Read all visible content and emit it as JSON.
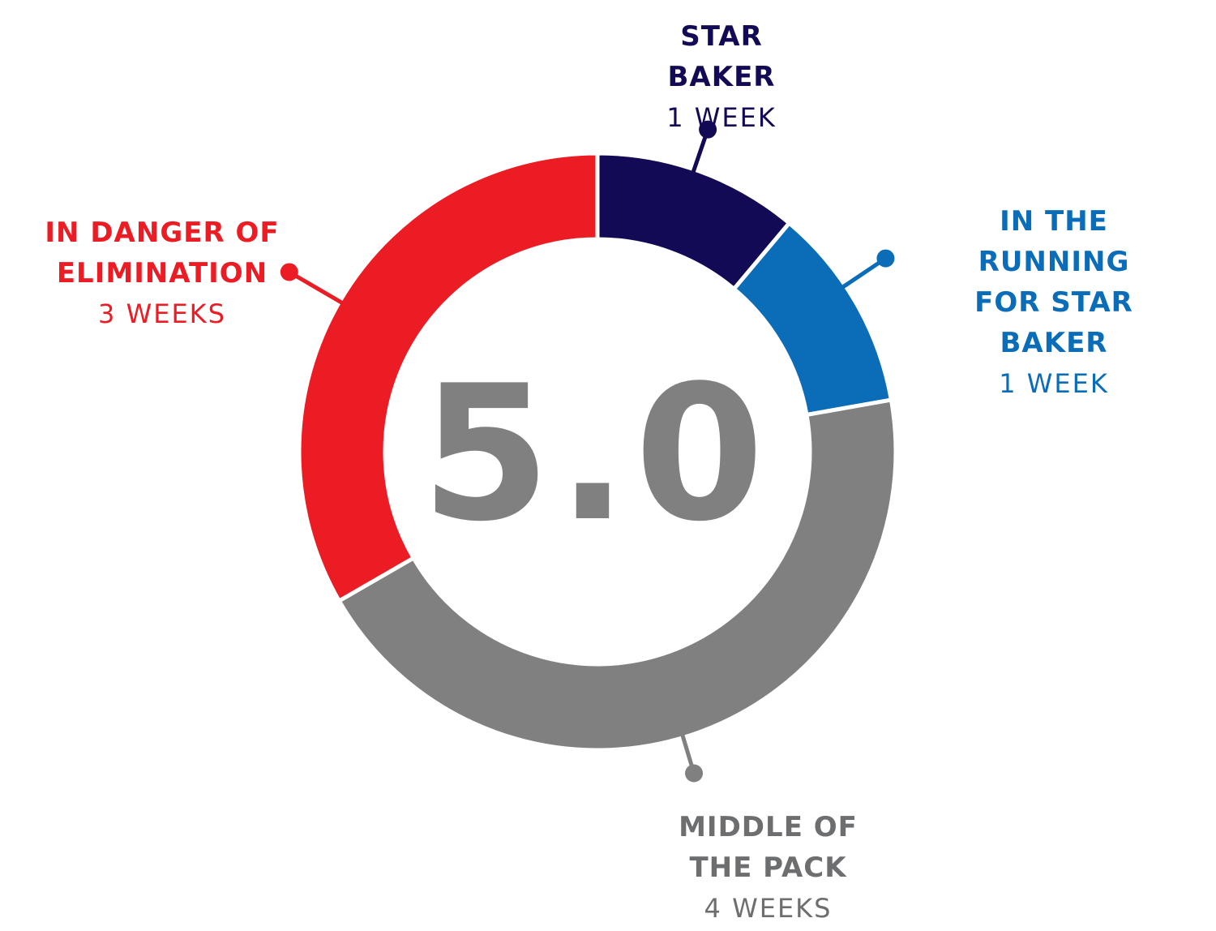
{
  "chart_data": {
    "type": "pie",
    "center_value": "5.0",
    "slices": [
      {
        "name": "STAR BAKER",
        "value_text": "1 WEEK",
        "weeks": 1,
        "color": "#120a55"
      },
      {
        "name": "IN THE RUNNING FOR STAR BAKER",
        "title_lines": [
          "IN THE RUNNING",
          "FOR STAR BAKER"
        ],
        "value_text": "1 WEEK",
        "weeks": 1,
        "color": "#0b6cb8"
      },
      {
        "name": "MIDDLE OF THE PACK",
        "title_lines": [
          "MIDDLE OF",
          "THE PACK"
        ],
        "value_text": "4 WEEKS",
        "weeks": 4,
        "color": "#808080"
      },
      {
        "name": "IN DANGER OF ELIMINATION",
        "title_lines": [
          "IN DANGER OF",
          "ELIMINATION"
        ],
        "value_text": "3 WEEKS",
        "weeks": 3,
        "color": "#ec1c24"
      }
    ]
  }
}
